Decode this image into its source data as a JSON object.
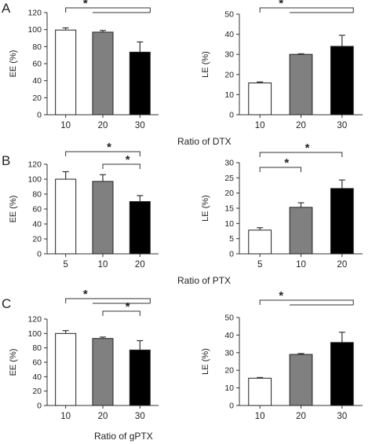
{
  "panels": [
    {
      "letter": "A",
      "footer": "Ratio of DTX"
    },
    {
      "letter": "B",
      "footer": "Ratio of PTX"
    },
    {
      "letter": "C",
      "footer": "Ratio of gPTX"
    }
  ],
  "colors": {
    "bar_1": "#ffffff",
    "bar_2": "#808080",
    "bar_3": "#000000",
    "axis": "#333333",
    "bar_stroke": "#222222"
  },
  "chart_data": [
    {
      "type": "bar",
      "panel": "A",
      "ylabel": "EE (%)",
      "categories": [
        "10",
        "20",
        "30"
      ],
      "values": [
        99.5,
        97,
        73.5
      ],
      "errors": [
        2.5,
        2,
        12
      ],
      "ylim": [
        0,
        120
      ],
      "yticks": [
        0,
        20,
        40,
        60,
        80,
        100,
        120
      ],
      "significance": [
        {
          "label": "*",
          "from": 0,
          "to": [
            1,
            2
          ]
        }
      ]
    },
    {
      "type": "bar",
      "panel": "A",
      "ylabel": "LE (%)",
      "categories": [
        "10",
        "20",
        "30"
      ],
      "values": [
        15.8,
        30,
        34
      ],
      "errors": [
        0.5,
        0.3,
        5.5
      ],
      "ylim": [
        0,
        50
      ],
      "yticks": [
        0,
        10,
        20,
        30,
        40,
        50
      ],
      "significance": [
        {
          "label": "*",
          "from": 0,
          "to": [
            1,
            2
          ]
        }
      ]
    },
    {
      "type": "bar",
      "panel": "B",
      "ylabel": "EE (%)",
      "categories": [
        "5",
        "10",
        "20"
      ],
      "values": [
        100,
        97,
        70
      ],
      "errors": [
        10,
        9,
        8
      ],
      "ylim": [
        0,
        120
      ],
      "yticks": [
        0,
        20,
        40,
        60,
        80,
        100,
        120
      ],
      "significance": [
        {
          "label": "*",
          "from": 0,
          "to": [
            2
          ]
        },
        {
          "label": "*",
          "from": 1,
          "to": [
            2
          ]
        }
      ]
    },
    {
      "type": "bar",
      "panel": "B",
      "ylabel": "LE (%)",
      "categories": [
        "5",
        "10",
        "20"
      ],
      "values": [
        7.8,
        15.3,
        21.5
      ],
      "errors": [
        0.8,
        1.5,
        2.8
      ],
      "ylim": [
        0,
        30
      ],
      "yticks": [
        0,
        5,
        10,
        15,
        20,
        25,
        30
      ],
      "significance": [
        {
          "label": "*",
          "from": 0,
          "to": [
            2
          ]
        },
        {
          "label": "*",
          "from": 0,
          "to": [
            1
          ]
        }
      ]
    },
    {
      "type": "bar",
      "panel": "C",
      "ylabel": "EE (%)",
      "categories": [
        "10",
        "20",
        "30"
      ],
      "values": [
        100,
        93,
        77
      ],
      "errors": [
        4,
        2,
        13
      ],
      "ylim": [
        0,
        120
      ],
      "yticks": [
        0,
        20,
        40,
        60,
        80,
        100,
        120
      ],
      "significance": [
        {
          "label": "*",
          "from": 0,
          "to": [
            1,
            2
          ]
        },
        {
          "label": "*",
          "from": 1,
          "to": [
            2
          ]
        }
      ]
    },
    {
      "type": "bar",
      "panel": "C",
      "ylabel": "LE (%)",
      "categories": [
        "10",
        "20",
        "30"
      ],
      "values": [
        15.5,
        29,
        35.8
      ],
      "errors": [
        0.4,
        0.5,
        5.8
      ],
      "ylim": [
        0,
        50
      ],
      "yticks": [
        0,
        10,
        20,
        30,
        40,
        50
      ],
      "significance": [
        {
          "label": "*",
          "from": 0,
          "to": [
            1,
            2
          ]
        }
      ]
    }
  ]
}
